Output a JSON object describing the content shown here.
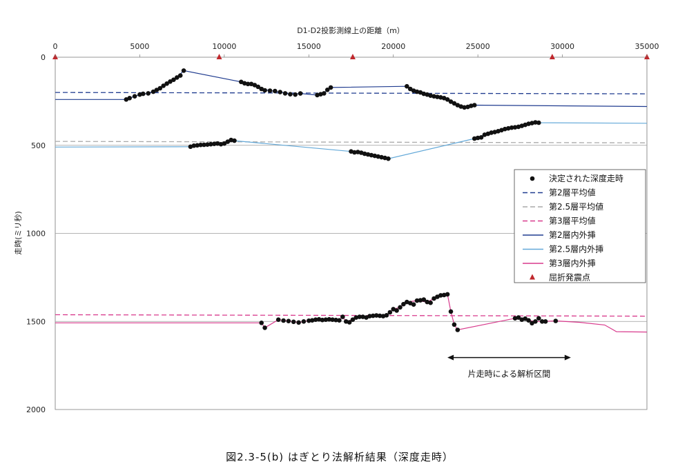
{
  "chart_data": {
    "type": "line",
    "xlabel": "D1-D2投影測線上の距離（m）",
    "ylabel": "走時(ミリ秒)",
    "xlim": [
      0,
      35000
    ],
    "ylim": [
      0,
      2000
    ],
    "y_inverted": true,
    "x_ticks": [
      "0",
      "5000",
      "10000",
      "15000",
      "20000",
      "25000",
      "30000",
      "35000"
    ],
    "y_ticks": [
      "0",
      "500",
      "1000",
      "1500",
      "2000"
    ],
    "gridlines": "horizontal",
    "legend_position": "right",
    "colors": {
      "points": "#111111",
      "layer2": "#1f3b8f",
      "layer25": "#62a8d8",
      "layer3": "#d8398c",
      "shots": "#c0282d",
      "avg25": "#a9a9a9"
    },
    "series": [
      {
        "name": "決定された深度走時",
        "style": "points",
        "points": [
          [
            4200,
            240
          ],
          [
            4400,
            232
          ],
          [
            4700,
            222
          ],
          [
            5000,
            212
          ],
          [
            5200,
            208
          ],
          [
            5500,
            205
          ],
          [
            5800,
            196
          ],
          [
            6000,
            186
          ],
          [
            6200,
            176
          ],
          [
            6400,
            162
          ],
          [
            6600,
            150
          ],
          [
            6800,
            138
          ],
          [
            7000,
            128
          ],
          [
            7200,
            115
          ],
          [
            7400,
            104
          ],
          [
            7600,
            76
          ],
          [
            11000,
            140
          ],
          [
            11200,
            148
          ],
          [
            11400,
            152
          ],
          [
            11600,
            152
          ],
          [
            11800,
            158
          ],
          [
            12000,
            168
          ],
          [
            12200,
            180
          ],
          [
            12400,
            188
          ],
          [
            12700,
            190
          ],
          [
            13000,
            192
          ],
          [
            13300,
            198
          ],
          [
            13600,
            205
          ],
          [
            13900,
            210
          ],
          [
            14200,
            212
          ],
          [
            14500,
            206
          ],
          [
            15500,
            215
          ],
          [
            15700,
            210
          ],
          [
            15900,
            205
          ],
          [
            16100,
            185
          ],
          [
            16300,
            172
          ],
          [
            20800,
            165
          ],
          [
            21000,
            180
          ],
          [
            21200,
            190
          ],
          [
            21400,
            196
          ],
          [
            21600,
            200
          ],
          [
            21800,
            208
          ],
          [
            22000,
            212
          ],
          [
            22200,
            218
          ],
          [
            22400,
            222
          ],
          [
            22600,
            225
          ],
          [
            22800,
            228
          ],
          [
            23000,
            232
          ],
          [
            23200,
            240
          ],
          [
            23400,
            252
          ],
          [
            23600,
            262
          ],
          [
            23800,
            272
          ],
          [
            24000,
            280
          ],
          [
            24200,
            285
          ],
          [
            24400,
            282
          ],
          [
            24600,
            276
          ],
          [
            24800,
            272
          ],
          [
            8000,
            508
          ],
          [
            8200,
            502
          ],
          [
            8400,
            500
          ],
          [
            8600,
            498
          ],
          [
            8800,
            497
          ],
          [
            9000,
            496
          ],
          [
            9200,
            494
          ],
          [
            9400,
            492
          ],
          [
            9600,
            490
          ],
          [
            9800,
            494
          ],
          [
            10000,
            490
          ],
          [
            10200,
            480
          ],
          [
            10400,
            470
          ],
          [
            10600,
            474
          ],
          [
            17500,
            535
          ],
          [
            17700,
            540
          ],
          [
            17900,
            538
          ],
          [
            18100,
            542
          ],
          [
            18300,
            548
          ],
          [
            18500,
            552
          ],
          [
            18700,
            556
          ],
          [
            18900,
            560
          ],
          [
            19100,
            564
          ],
          [
            19300,
            568
          ],
          [
            19500,
            572
          ],
          [
            19700,
            576
          ],
          [
            24800,
            462
          ],
          [
            25000,
            458
          ],
          [
            25200,
            455
          ],
          [
            25400,
            440
          ],
          [
            25600,
            435
          ],
          [
            25800,
            428
          ],
          [
            26000,
            425
          ],
          [
            26200,
            420
          ],
          [
            26400,
            414
          ],
          [
            26600,
            408
          ],
          [
            26800,
            404
          ],
          [
            27000,
            400
          ],
          [
            27200,
            398
          ],
          [
            27400,
            395
          ],
          [
            27600,
            390
          ],
          [
            27800,
            384
          ],
          [
            28000,
            378
          ],
          [
            28200,
            374
          ],
          [
            28400,
            370
          ],
          [
            28600,
            372
          ],
          [
            12200,
            1508
          ],
          [
            12400,
            1536
          ],
          [
            13200,
            1490
          ],
          [
            13500,
            1495
          ],
          [
            13800,
            1498
          ],
          [
            14100,
            1502
          ],
          [
            14400,
            1506
          ],
          [
            14700,
            1500
          ],
          [
            15000,
            1496
          ],
          [
            15200,
            1494
          ],
          [
            15400,
            1490
          ],
          [
            15600,
            1488
          ],
          [
            15800,
            1492
          ],
          [
            16000,
            1490
          ],
          [
            16200,
            1488
          ],
          [
            16400,
            1490
          ],
          [
            16600,
            1492
          ],
          [
            16800,
            1494
          ],
          [
            17000,
            1474
          ],
          [
            17200,
            1500
          ],
          [
            17400,
            1505
          ],
          [
            17600,
            1490
          ],
          [
            17800,
            1478
          ],
          [
            18000,
            1474
          ],
          [
            18200,
            1474
          ],
          [
            18400,
            1478
          ],
          [
            18600,
            1470
          ],
          [
            18800,
            1468
          ],
          [
            19000,
            1466
          ],
          [
            19200,
            1468
          ],
          [
            19400,
            1470
          ],
          [
            19600,
            1465
          ],
          [
            19800,
            1448
          ],
          [
            20000,
            1430
          ],
          [
            20200,
            1438
          ],
          [
            20400,
            1420
          ],
          [
            20600,
            1402
          ],
          [
            20800,
            1390
          ],
          [
            21000,
            1396
          ],
          [
            21200,
            1404
          ],
          [
            21400,
            1382
          ],
          [
            21600,
            1380
          ],
          [
            21800,
            1376
          ],
          [
            22000,
            1390
          ],
          [
            22200,
            1394
          ],
          [
            22400,
            1370
          ],
          [
            22600,
            1360
          ],
          [
            22800,
            1352
          ],
          [
            23000,
            1350
          ],
          [
            23200,
            1346
          ],
          [
            23400,
            1444
          ],
          [
            23600,
            1518
          ],
          [
            23800,
            1548
          ],
          [
            27200,
            1482
          ],
          [
            27400,
            1478
          ],
          [
            27600,
            1490
          ],
          [
            27800,
            1484
          ],
          [
            28000,
            1494
          ],
          [
            28200,
            1510
          ],
          [
            28400,
            1500
          ],
          [
            28600,
            1482
          ],
          [
            28800,
            1500
          ],
          [
            29000,
            1500
          ],
          [
            29600,
            1497
          ]
        ]
      },
      {
        "name": "第2層平均値",
        "style": "dash",
        "color": "#1f3b8f",
        "x": [
          0,
          35000
        ],
        "y": [
          200,
          208
        ]
      },
      {
        "name": "第2.5層平均値",
        "style": "dash",
        "color": "#a9a9a9",
        "x": [
          0,
          35000
        ],
        "y": [
          478,
          486
        ]
      },
      {
        "name": "第3層平均値",
        "style": "dash",
        "color": "#d8398c",
        "x": [
          0,
          35000
        ],
        "y": [
          1462,
          1470
        ]
      },
      {
        "name": "第2層内外挿",
        "style": "line",
        "color": "#1f3b8f",
        "x": [
          0,
          4200,
          4400,
          4700,
          5000,
          5500,
          6000,
          6400,
          6800,
          7200,
          7600,
          11000,
          11400,
          11800,
          12200,
          12700,
          13300,
          13900,
          14500,
          15500,
          15900,
          16100,
          16300,
          20800,
          21000,
          21400,
          21800,
          22400,
          23000,
          23400,
          23800,
          24200,
          24600,
          24800,
          35000
        ],
        "y": [
          240,
          240,
          232,
          222,
          212,
          205,
          186,
          162,
          138,
          115,
          76,
          140,
          152,
          158,
          180,
          190,
          198,
          210,
          206,
          215,
          205,
          185,
          172,
          165,
          180,
          196,
          208,
          222,
          232,
          252,
          272,
          285,
          276,
          272,
          280
        ]
      },
      {
        "name": "第2.5層内外挿",
        "style": "line",
        "color": "#62a8d8",
        "x": [
          0,
          8000,
          8400,
          9000,
          9600,
          10000,
          10200,
          10400,
          10600,
          17500,
          18100,
          18700,
          19300,
          19700,
          24800,
          25400,
          26000,
          26600,
          27200,
          27800,
          28400,
          28600,
          35000
        ],
        "y": [
          510,
          508,
          500,
          496,
          490,
          490,
          480,
          470,
          474,
          535,
          542,
          556,
          568,
          576,
          462,
          440,
          425,
          408,
          398,
          384,
          370,
          372,
          375
        ]
      },
      {
        "name": "第3層内外挿",
        "style": "line",
        "color": "#d8398c",
        "x": [
          0,
          12200,
          12400,
          13200,
          13800,
          14400,
          15000,
          15600,
          16200,
          16800,
          17000,
          17200,
          17600,
          18000,
          18600,
          19200,
          19600,
          19800,
          20000,
          20400,
          20800,
          21400,
          22000,
          22400,
          23000,
          23200,
          23400,
          23600,
          23800,
          27200,
          27600,
          28000,
          28400,
          28800,
          29600,
          31000,
          32500,
          33200,
          35000
        ],
        "y": [
          1508,
          1508,
          1536,
          1490,
          1498,
          1506,
          1496,
          1488,
          1488,
          1494,
          1474,
          1500,
          1490,
          1474,
          1470,
          1468,
          1465,
          1448,
          1430,
          1420,
          1390,
          1382,
          1390,
          1370,
          1350,
          1346,
          1444,
          1518,
          1548,
          1482,
          1490,
          1494,
          1500,
          1500,
          1497,
          1505,
          1520,
          1558,
          1560
        ]
      },
      {
        "name": "屈折発震点",
        "style": "triangle",
        "color": "#c0282d",
        "x": [
          0,
          9700,
          17600,
          29400,
          35000
        ],
        "y": [
          0,
          0,
          0,
          0,
          0
        ]
      }
    ],
    "annotations": [
      {
        "text": "片走時による解析区間",
        "x_range": [
          23200,
          30500
        ],
        "y": 1705
      }
    ],
    "caption": "図2.3-5(b)  はぎとり法解析結果（深度走時）"
  }
}
